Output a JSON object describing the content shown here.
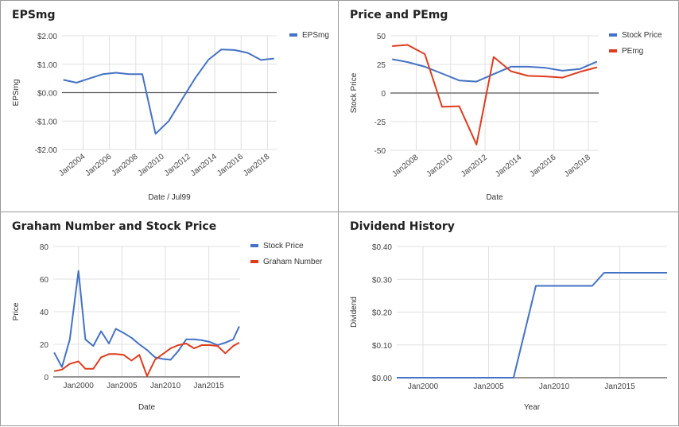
{
  "chart_data": [
    {
      "type": "line",
      "title": "EPSmg",
      "xlabel": "Date / Jul99",
      "ylabel": "EPSmg",
      "ylim": [
        -2,
        2
      ],
      "xlim": [
        2002.4,
        2018.7
      ],
      "yticks": [
        2,
        1,
        0,
        -1,
        -2
      ],
      "ytick_labels": [
        "$2.00",
        "$1.00",
        "$0.00",
        "-$1.00",
        "-$2.00"
      ],
      "xticks": [
        2004,
        2006,
        2008,
        2010,
        2012,
        2014,
        2016,
        2018
      ],
      "xtick_labels": [
        "Jan2004",
        "Jan2006",
        "Jan2008",
        "Jan2010",
        "Jan2012",
        "Jan2014",
        "Jan2016",
        "Jan2018"
      ],
      "legend_position": "right",
      "series": [
        {
          "name": "EPSmg",
          "color": "#4472C4",
          "x": [
            2002.5,
            2003.5,
            2004.5,
            2005.5,
            2006.5,
            2007.5,
            2008.5,
            2009.5,
            2010.5,
            2011.5,
            2012.5,
            2013.5,
            2014.5,
            2015.5,
            2016.5,
            2017.5,
            2018.5
          ],
          "y": [
            0.45,
            0.35,
            0.5,
            0.65,
            0.7,
            0.65,
            0.65,
            -1.45,
            -1.0,
            -0.25,
            0.5,
            1.15,
            1.52,
            1.5,
            1.4,
            1.15,
            1.2
          ]
        }
      ]
    },
    {
      "type": "line",
      "title": "Price and PEmg",
      "xlabel": "Date",
      "ylabel": "Stock Price",
      "ylim": [
        -50,
        50
      ],
      "xlim": [
        2006.5,
        2018.6
      ],
      "yticks": [
        50,
        25,
        0,
        -25,
        -50
      ],
      "ytick_labels": [
        "50",
        "25",
        "0",
        "-25",
        "-50"
      ],
      "xticks": [
        2008,
        2010,
        2012,
        2014,
        2016,
        2018
      ],
      "xtick_labels": [
        "Jan2008",
        "Jan2010",
        "Jan2012",
        "Jan2014",
        "Jan2016",
        "Jan2018"
      ],
      "legend_position": "right",
      "series": [
        {
          "name": "Stock Price",
          "color": "#4472C4",
          "x": [
            2006.6,
            2007.5,
            2008.5,
            2009.5,
            2010.5,
            2011.5,
            2012.5,
            2013.5,
            2014.5,
            2015.5,
            2016.5,
            2017.5,
            2018.5
          ],
          "y": [
            29.5,
            27,
            23,
            17,
            11,
            10,
            16.5,
            23,
            23,
            22,
            19.5,
            21,
            27.5
          ]
        },
        {
          "name": "PEmg",
          "color": "#DE3C1E",
          "x": [
            2006.6,
            2007.5,
            2008.5,
            2009.5,
            2010.5,
            2011.5,
            2012.5,
            2013.5,
            2014.5,
            2015.5,
            2016.5,
            2017.5,
            2018.5
          ],
          "y": [
            41,
            42,
            34,
            -12,
            -11.5,
            -45,
            31.5,
            19,
            15,
            14.5,
            13.5,
            18.5,
            22.5
          ]
        }
      ]
    },
    {
      "type": "line",
      "title": "Graham Number and Stock Price",
      "xlabel": "Date",
      "ylabel": "Price",
      "ylim": [
        0,
        80
      ],
      "xlim": [
        1997.1,
        2018.6
      ],
      "yticks": [
        80,
        60,
        40,
        20,
        0
      ],
      "ytick_labels": [
        "80",
        "60",
        "40",
        "20",
        "0"
      ],
      "xticks": [
        2000,
        2005,
        2010,
        2015
      ],
      "xtick_labels": [
        "Jan2000",
        "Jan2005",
        "Jan2010",
        "Jan2015"
      ],
      "legend_position": "right",
      "series": [
        {
          "name": "Stock Price",
          "color": "#4472C4",
          "x": [
            1997.2,
            1998.1,
            1999.0,
            2000.0,
            2000.8,
            2001.7,
            2002.6,
            2003.5,
            2004.3,
            2005.2,
            2006.1,
            2007.0,
            2007.9,
            2008.8,
            2009.7,
            2010.6,
            2011.5,
            2012.4,
            2013.3,
            2014.2,
            2015.1,
            2016.0,
            2016.9,
            2017.8,
            2018.5
          ],
          "y": [
            15,
            6,
            23,
            65,
            23,
            19,
            28,
            20.5,
            29.5,
            27,
            24,
            20,
            16.5,
            12,
            11,
            10.5,
            16,
            23,
            23,
            22.5,
            21.5,
            19.5,
            21,
            23,
            31
          ]
        },
        {
          "name": "Graham Number",
          "color": "#DE3C1E",
          "x": [
            1997.2,
            1998.1,
            1999.0,
            2000.0,
            2000.8,
            2001.7,
            2002.6,
            2003.5,
            2004.3,
            2005.2,
            2006.1,
            2007.0,
            2007.9,
            2008.8,
            2009.7,
            2010.6,
            2011.5,
            2012.4,
            2013.3,
            2014.2,
            2015.1,
            2016.0,
            2016.9,
            2017.8,
            2018.5
          ],
          "y": [
            3.5,
            4.5,
            8,
            9.5,
            5,
            5,
            12,
            14,
            14,
            13.5,
            10,
            13.5,
            0.5,
            10.5,
            14,
            17.5,
            19.5,
            20.5,
            17.5,
            19.5,
            19.5,
            19,
            14.5,
            19,
            21
          ]
        }
      ]
    },
    {
      "type": "line",
      "title": "Dividend History",
      "xlabel": "Year",
      "ylabel": "Dividend",
      "ylim": [
        0,
        0.4
      ],
      "xlim": [
        1998.0,
        2018.6
      ],
      "yticks": [
        0.4,
        0.3,
        0.2,
        0.1,
        0
      ],
      "ytick_labels": [
        "$0.40",
        "$0.30",
        "$0.20",
        "$0.10",
        "$0.00"
      ],
      "xticks": [
        2000,
        2005,
        2010,
        2015
      ],
      "xtick_labels": [
        "Jan2000",
        "Jan2005",
        "Jan2010",
        "Jan2015"
      ],
      "legend_position": "none",
      "series": [
        {
          "name": "",
          "color": "#4472C4",
          "x": [
            1998.0,
            2006.9,
            2008.6,
            2012.9,
            2013.8,
            2018.6
          ],
          "y": [
            0,
            0,
            0.28,
            0.28,
            0.32,
            0.32
          ]
        }
      ]
    }
  ]
}
